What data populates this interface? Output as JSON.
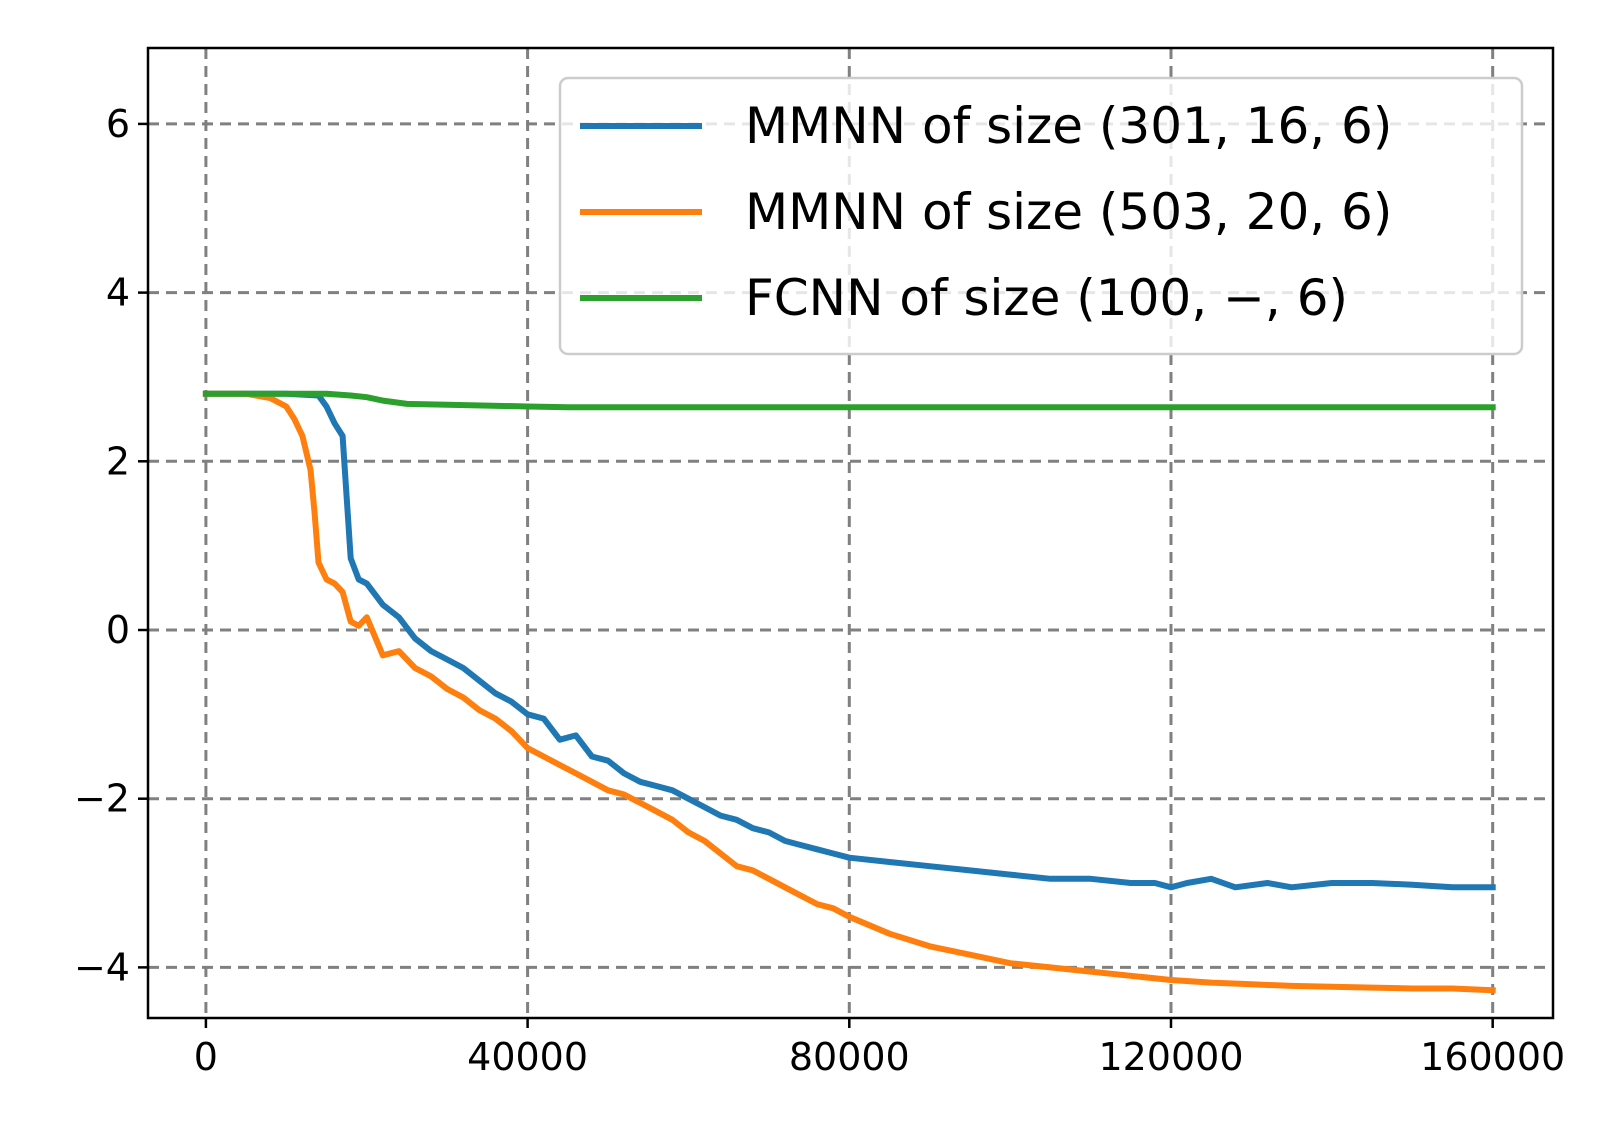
{
  "chart_data": {
    "type": "line",
    "title": "",
    "xlabel": "",
    "ylabel": "",
    "xlim": [
      -7200,
      167500
    ],
    "ylim": [
      -4.6,
      6.9
    ],
    "grid": true,
    "legend_position": "top-right",
    "x_ticks": [
      0,
      40000,
      80000,
      120000,
      160000
    ],
    "x_tick_labels": [
      "0",
      "40000",
      "80000",
      "120000",
      "160000"
    ],
    "y_ticks": [
      6,
      4,
      2,
      0,
      -2,
      -4
    ],
    "y_tick_labels": [
      "6",
      "4",
      "2",
      "0",
      "−2",
      "−4"
    ],
    "series": [
      {
        "name": "MMNN of size (301, 16, 6)",
        "color": "#1f77b4",
        "x": [
          0,
          5000,
          10000,
          14000,
          15000,
          16000,
          17000,
          18000,
          19000,
          20000,
          22000,
          24000,
          26000,
          28000,
          30000,
          32000,
          34000,
          36000,
          38000,
          40000,
          42000,
          44000,
          46000,
          48000,
          50000,
          52000,
          54000,
          56000,
          58000,
          60000,
          62000,
          64000,
          66000,
          68000,
          70000,
          72000,
          74000,
          76000,
          78000,
          80000,
          85000,
          90000,
          95000,
          100000,
          105000,
          110000,
          115000,
          118000,
          120000,
          122000,
          125000,
          128000,
          132000,
          135000,
          140000,
          145000,
          150000,
          155000,
          160000
        ],
        "y": [
          2.8,
          2.8,
          2.8,
          2.78,
          2.65,
          2.45,
          2.3,
          0.85,
          0.6,
          0.55,
          0.3,
          0.15,
          -0.1,
          -0.25,
          -0.35,
          -0.45,
          -0.6,
          -0.75,
          -0.85,
          -1.0,
          -1.05,
          -1.3,
          -1.25,
          -1.5,
          -1.55,
          -1.7,
          -1.8,
          -1.85,
          -1.9,
          -2.0,
          -2.1,
          -2.2,
          -2.25,
          -2.35,
          -2.4,
          -2.5,
          -2.55,
          -2.6,
          -2.65,
          -2.7,
          -2.75,
          -2.8,
          -2.85,
          -2.9,
          -2.95,
          -2.95,
          -3.0,
          -3.0,
          -3.05,
          -3.0,
          -2.95,
          -3.05,
          -3.0,
          -3.05,
          -3.0,
          -3.0,
          -3.02,
          -3.05,
          -3.05
        ]
      },
      {
        "name": "MMNN of size (503, 20, 6)",
        "color": "#ff7f0e",
        "x": [
          0,
          5000,
          8000,
          10000,
          11000,
          12000,
          13000,
          13500,
          14000,
          15000,
          16000,
          17000,
          18000,
          19000,
          20000,
          22000,
          24000,
          26000,
          28000,
          30000,
          32000,
          34000,
          36000,
          38000,
          40000,
          42000,
          44000,
          46000,
          48000,
          50000,
          52000,
          54000,
          56000,
          58000,
          60000,
          62000,
          64000,
          66000,
          68000,
          70000,
          72000,
          74000,
          76000,
          78000,
          80000,
          85000,
          90000,
          95000,
          100000,
          105000,
          110000,
          115000,
          120000,
          125000,
          130000,
          135000,
          140000,
          145000,
          150000,
          155000,
          160000
        ],
        "y": [
          2.8,
          2.8,
          2.75,
          2.65,
          2.5,
          2.3,
          1.9,
          1.4,
          0.8,
          0.6,
          0.55,
          0.45,
          0.1,
          0.05,
          0.15,
          -0.3,
          -0.25,
          -0.45,
          -0.55,
          -0.7,
          -0.8,
          -0.95,
          -1.05,
          -1.2,
          -1.4,
          -1.5,
          -1.6,
          -1.7,
          -1.8,
          -1.9,
          -1.95,
          -2.05,
          -2.15,
          -2.25,
          -2.4,
          -2.5,
          -2.65,
          -2.8,
          -2.85,
          -2.95,
          -3.05,
          -3.15,
          -3.25,
          -3.3,
          -3.4,
          -3.6,
          -3.75,
          -3.85,
          -3.95,
          -4.0,
          -4.05,
          -4.1,
          -4.15,
          -4.18,
          -4.2,
          -4.22,
          -4.23,
          -4.24,
          -4.25,
          -4.25,
          -4.27
        ]
      },
      {
        "name": "FCNN of size (100, −, 6)",
        "color": "#2ca02c",
        "x": [
          0,
          10000,
          15000,
          18000,
          20000,
          22000,
          25000,
          30000,
          35000,
          40000,
          45000,
          50000,
          60000,
          70000,
          80000,
          90000,
          100000,
          110000,
          120000,
          130000,
          140000,
          150000,
          160000
        ],
        "y": [
          2.8,
          2.8,
          2.8,
          2.78,
          2.76,
          2.72,
          2.68,
          2.67,
          2.66,
          2.65,
          2.64,
          2.64,
          2.64,
          2.64,
          2.64,
          2.64,
          2.64,
          2.64,
          2.64,
          2.64,
          2.64,
          2.64,
          2.64
        ]
      }
    ]
  }
}
